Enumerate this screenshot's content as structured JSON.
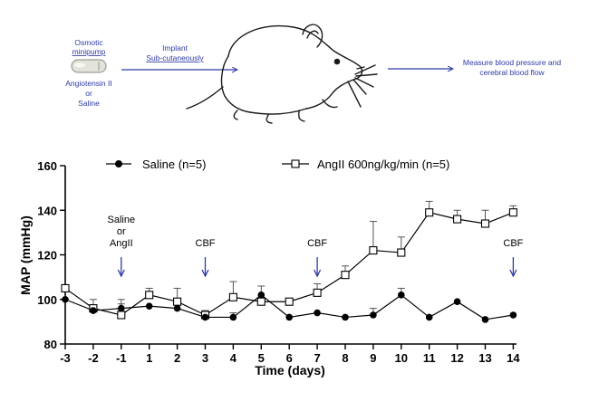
{
  "schematic": {
    "pump_label_line1": "Osmotic",
    "pump_label_line2": "minipump",
    "drug_label_line1": "Angiotensin II",
    "drug_label_line2": "or",
    "drug_label_line3": "Saline",
    "implant_label_line1": "Implant",
    "implant_label_line2": "Sub-cutaneously",
    "measure_label_line1": "Measure blood pressure and",
    "measure_label_line2": "cerebral blood flow"
  },
  "colors": {
    "arrow": "#2e3aa5",
    "axis": "#000000",
    "text": "#000000",
    "error_bar": "#555555"
  },
  "chart_data": {
    "type": "line",
    "title": "",
    "xlabel": "Time (days)",
    "ylabel": "MAP (mmHg)",
    "x": [
      -3,
      -2,
      -1,
      1,
      2,
      3,
      4,
      5,
      6,
      7,
      8,
      9,
      10,
      11,
      12,
      13,
      14
    ],
    "x_tick_labels": [
      "-3",
      "-2",
      "-1",
      "1",
      "2",
      "3",
      "4",
      "5",
      "6",
      "7",
      "8",
      "9",
      "10",
      "11",
      "12",
      "13",
      "14"
    ],
    "ylim": [
      80,
      160
    ],
    "y_ticks": [
      80,
      100,
      120,
      140,
      160
    ],
    "y_tick_labels": [
      "80",
      "100",
      "120",
      "140",
      "160"
    ],
    "legend_position": "top",
    "series": [
      {
        "name": "Saline (n=5)",
        "marker": "filled-circle",
        "values": [
          100,
          95,
          96,
          97,
          96,
          92,
          92,
          102,
          92,
          94,
          92,
          93,
          102,
          92,
          99,
          91,
          93
        ],
        "errors": [
          0,
          0,
          4,
          0,
          0,
          0,
          2,
          0,
          0,
          0,
          0,
          3,
          3,
          0,
          0,
          0,
          0
        ]
      },
      {
        "name": "AngII 600ng/kg/min (n=5)",
        "marker": "open-square",
        "values": [
          105,
          96,
          93,
          102,
          99,
          93,
          101,
          99,
          99,
          103,
          111,
          122,
          121,
          139,
          136,
          134,
          139
        ],
        "errors": [
          0,
          4,
          5,
          3,
          6,
          2,
          7,
          7,
          0,
          4,
          4,
          13,
          7,
          5,
          4,
          6,
          3
        ]
      }
    ],
    "annotations": [
      {
        "x": -1,
        "lines": [
          "Saline",
          "or",
          "AngII"
        ]
      },
      {
        "x": 3,
        "lines": [
          "CBF"
        ]
      },
      {
        "x": 7,
        "lines": [
          "CBF"
        ]
      },
      {
        "x": 14,
        "lines": [
          "CBF"
        ]
      }
    ]
  }
}
